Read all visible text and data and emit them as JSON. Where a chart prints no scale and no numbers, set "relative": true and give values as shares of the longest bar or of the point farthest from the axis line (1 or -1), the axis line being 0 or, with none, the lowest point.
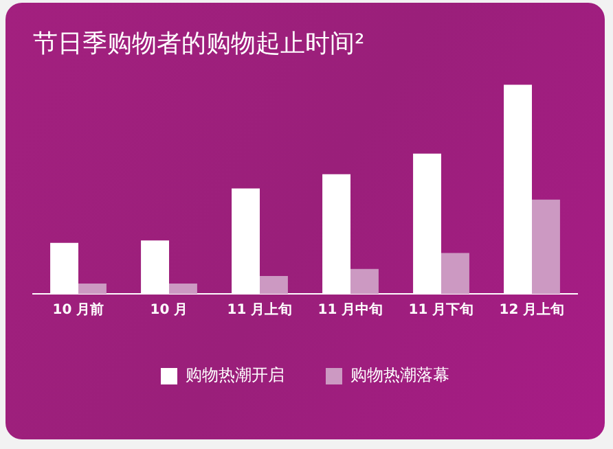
{
  "chart_data": {
    "type": "bar",
    "title": "节日季购物者的购物起止时间²",
    "relative": true,
    "categories": [
      "10 月前",
      "10 月",
      "11 月上旬",
      "11 月中旬",
      "11 月下旬",
      "12 月上旬"
    ],
    "series": [
      {
        "name": "购物热潮开启",
        "color": "#ffffff",
        "values": [
          0.244,
          0.255,
          0.504,
          0.572,
          0.67,
          1
        ]
      },
      {
        "name": "购物热潮落幕",
        "color": "#cc99c2",
        "values": [
          0.049,
          0.049,
          0.085,
          0.119,
          0.195,
          0.45
        ]
      }
    ],
    "legend": "bottom",
    "grid": false
  }
}
